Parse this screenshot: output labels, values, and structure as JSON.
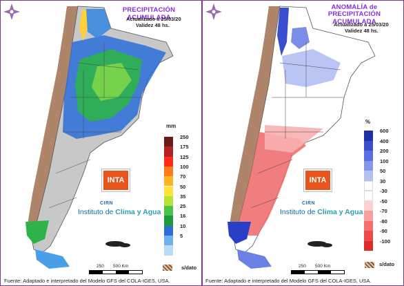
{
  "left_panel": {
    "title_line1": "PRECIPITACIÓN ACUMULADA",
    "updated": "Actualizado a 25/03/20",
    "validity": "Validez 48 hs.",
    "legend_unit": "mm",
    "legend": [
      {
        "label": "250",
        "color": "#6b1a1a"
      },
      {
        "label": "175",
        "color": "#b22222"
      },
      {
        "label": "125",
        "color": "#ff2a1a"
      },
      {
        "label": "100",
        "color": "#ff7a1a"
      },
      {
        "label": "70",
        "color": "#ffb320"
      },
      {
        "label": "50",
        "color": "#ffe23a"
      },
      {
        "label": "35",
        "color": "#b8e23a"
      },
      {
        "label": "25",
        "color": "#4cc24c"
      },
      {
        "label": "16",
        "color": "#1e9a3a"
      },
      {
        "label": "10",
        "color": "#2c6ed8"
      },
      {
        "label": "5",
        "color": "#6fb0f0"
      },
      {
        "label": "",
        "color": "#b9dcf6"
      }
    ],
    "nodata_label": "s/dato"
  },
  "right_panel": {
    "title_line1": "ANOMALÍA de",
    "title_line2": "PRECIPITACIÓN ACUMULADA",
    "updated": "Actualizado a 25/03/20",
    "validity": "Validez 48 hs.",
    "legend_unit": "%",
    "legend": [
      {
        "label": "600",
        "color": "#1f2fa8"
      },
      {
        "label": "400",
        "color": "#3a4fd0"
      },
      {
        "label": "200",
        "color": "#5a70e0"
      },
      {
        "label": "100",
        "color": "#8596ea"
      },
      {
        "label": "50",
        "color": "#b4bff2"
      },
      {
        "label": "30",
        "color": "#ffffff"
      },
      {
        "label": "-30",
        "color": "#ffffff"
      },
      {
        "label": "-50",
        "color": "#fcd0d0"
      },
      {
        "label": "-70",
        "color": "#f8a0a0"
      },
      {
        "label": "-80",
        "color": "#f47070"
      },
      {
        "label": "-90",
        "color": "#ee4a4a"
      },
      {
        "label": "-100",
        "color": "#e02a2a"
      }
    ],
    "nodata_label": "s/dato"
  },
  "branding": {
    "inta": "INTA",
    "cirn": "CIRN",
    "institute_a": "Instituto de ",
    "institute_b": "Clima y Agua"
  },
  "scale": {
    "a": "250",
    "b": "500 Km"
  },
  "footer": {
    "left": "Fuente: Adaptado e interpretado del Modelo GFS del COLA-IGES, USA.",
    "right": "Fuente: Adaptado e interpretado del Modelo GFS del COLA-IGES, USA."
  },
  "colors": {
    "frame": "#7a3a8c",
    "title": "#8a2be2"
  }
}
